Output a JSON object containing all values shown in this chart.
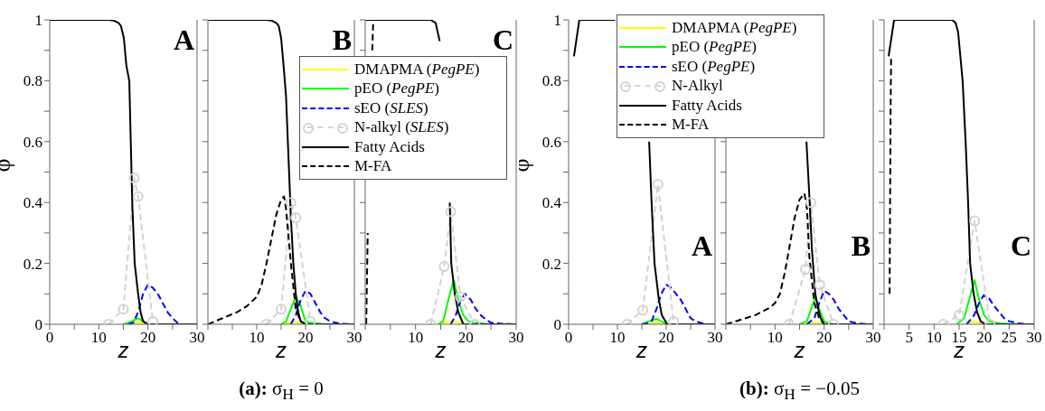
{
  "chart_data": [
    {
      "type": "line",
      "xlim": [
        0,
        30
      ],
      "ylim": [
        0,
        1
      ],
      "xlabel": "z",
      "ylabel": "φ",
      "xticks": [
        0,
        {
          "value": 5,
          "label": null
        },
        10,
        {
          "value": 15,
          "label": null
        },
        20,
        {
          "value": 25,
          "label": null
        },
        30
      ],
      "yticks": [
        0,
        {
          "value": 0.1,
          "label": null
        },
        0.2,
        {
          "value": 0.3,
          "label": null
        },
        0.4,
        {
          "value": 0.5,
          "label": null
        },
        0.6,
        {
          "value": 0.7,
          "label": null
        },
        0.8,
        {
          "value": 0.9,
          "label": null
        },
        1
      ],
      "annotations": [
        "A"
      ],
      "series": [
        {
          "color": "#ffff00",
          "x": [
            16,
            17,
            18,
            19,
            20
          ],
          "values": [
            0,
            0.004,
            0.008,
            0.004,
            0
          ]
        },
        {
          "color": "#00ff00",
          "x": [
            15,
            16,
            17,
            18,
            19,
            20
          ],
          "values": [
            0,
            0.005,
            0.012,
            0.02,
            0.01,
            0
          ]
        },
        {
          "color": "#0000ff",
          "line_style": "dashed",
          "x": [
            16,
            17,
            18,
            19,
            20,
            21,
            22,
            23,
            24,
            25,
            26,
            27,
            30
          ],
          "values": [
            0,
            0.005,
            0.04,
            0.1,
            0.13,
            0.12,
            0.1,
            0.07,
            0.04,
            0.02,
            0.005,
            0,
            0
          ]
        },
        {
          "color": "#d3d3d3",
          "line_style": "dashed",
          "marker": "circle",
          "x": [
            12,
            15,
            17.2,
            18,
            21
          ],
          "values": [
            0,
            0.05,
            0.48,
            0.42,
            0.01
          ]
        },
        {
          "color": "#000000",
          "x": [
            0,
            5,
            10,
            12,
            13,
            14,
            14.5,
            15.1,
            15.6,
            16.2,
            16.5,
            16.8,
            17.3,
            18,
            18.5,
            19,
            20,
            30
          ],
          "values": [
            1,
            1,
            1,
            1,
            0.998,
            0.99,
            0.98,
            0.94,
            0.85,
            0.8,
            0.6,
            0.4,
            0.2,
            0.1,
            0.04,
            0.01,
            0,
            0
          ]
        }
      ]
    },
    {
      "type": "line",
      "xlim": [
        0,
        30
      ],
      "ylim": [
        0,
        1
      ],
      "xlabel": "z",
      "tick_labels": "x",
      "legend": "top right",
      "xticks": [
        {
          "value": 0,
          "label": null
        },
        {
          "value": 5,
          "label": null
        },
        10,
        {
          "value": 15,
          "label": null
        },
        20,
        {
          "value": 25,
          "label": null
        },
        30
      ],
      "yticks": [
        0,
        {
          "value": 0.1,
          "label": null
        },
        0.2,
        {
          "value": 0.3,
          "label": null
        },
        0.4,
        {
          "value": 0.5,
          "label": null
        },
        0.6,
        {
          "value": 0.7,
          "label": null
        },
        0.8,
        {
          "value": 0.9,
          "label": null
        },
        1
      ],
      "annotations": [
        "B",
        "(a): σ$_{H}$ = 0"
      ],
      "series": [
        {
          "name": "DMAPMA (PegPE)",
          "color": "#ffff00",
          "x": [
            15,
            17,
            18,
            19,
            20
          ],
          "values": [
            0,
            0.005,
            0.008,
            0.003,
            0
          ]
        },
        {
          "name": "pEO (PegPE)",
          "color": "#00ff00",
          "x": [
            15,
            16,
            17,
            18,
            19,
            20,
            21,
            24
          ],
          "values": [
            0,
            0.01,
            0.05,
            0.09,
            0.06,
            0.01,
            0.005,
            0
          ]
        },
        {
          "name": "sEO (SLES)",
          "color": "#0000ff",
          "line_style": "dashed",
          "x": [
            17,
            18,
            19,
            20,
            21,
            22,
            23,
            24,
            25,
            27,
            30
          ],
          "values": [
            0,
            0.03,
            0.08,
            0.11,
            0.1,
            0.07,
            0.04,
            0.02,
            0.01,
            0.002,
            0
          ]
        },
        {
          "name": "N-alkyl (SLES)",
          "color": "#d3d3d3",
          "line_style": "dashed",
          "marker": "circle",
          "x": [
            12,
            15,
            17,
            18,
            21
          ],
          "values": [
            0,
            0.05,
            0.4,
            0.35,
            0.01
          ]
        },
        {
          "name": "Fatty Acids",
          "color": "#000000",
          "x": [
            0,
            5,
            10,
            12,
            13,
            14,
            14.5,
            15,
            15.5,
            16,
            16.5,
            17,
            17.5,
            18,
            18.5,
            19,
            20,
            30
          ],
          "values": [
            1,
            1,
            1,
            1,
            0.998,
            0.99,
            0.98,
            0.94,
            0.85,
            0.75,
            0.55,
            0.35,
            0.2,
            0.1,
            0.04,
            0.01,
            0,
            0
          ]
        },
        {
          "name": "M-FA",
          "color": "#000000",
          "line_style": "dashed",
          "x": [
            0,
            3,
            6,
            8,
            10,
            11,
            12,
            13,
            14,
            15,
            15.6,
            16,
            17,
            18,
            19,
            20
          ],
          "values": [
            0,
            0.02,
            0.04,
            0.06,
            0.09,
            0.13,
            0.2,
            0.28,
            0.36,
            0.41,
            0.42,
            0.38,
            0.2,
            0.05,
            0.01,
            0
          ]
        }
      ]
    },
    {
      "type": "line",
      "xlim": [
        0,
        30
      ],
      "ylim": [
        0,
        1
      ],
      "xlabel": "z",
      "tick_labels": "x",
      "xticks": [
        {
          "value": 0,
          "label": null
        },
        {
          "value": 5,
          "label": null
        },
        10,
        {
          "value": 15,
          "label": null
        },
        20,
        {
          "value": 25,
          "label": null
        },
        30
      ],
      "yticks": [
        0,
        {
          "value": 0.1,
          "label": null
        },
        0.2,
        {
          "value": 0.3,
          "label": null
        },
        0.4,
        {
          "value": 0.5,
          "label": null
        },
        0.6,
        {
          "value": 0.7,
          "label": null
        },
        0.8,
        {
          "value": 0.9,
          "label": null
        },
        1
      ],
      "annotations": [
        "C"
      ],
      "series": [
        {
          "color": "#ffff00",
          "x": [
            14.5,
            16,
            17.5,
            19,
            20
          ],
          "values": [
            0,
            0.008,
            0.01,
            0.004,
            0
          ]
        },
        {
          "color": "#00ff00",
          "x": [
            14.5,
            15.5,
            16.5,
            17.6,
            18.5,
            19.5,
            20.5,
            22,
            24.5
          ],
          "values": [
            0,
            0.01,
            0.08,
            0.145,
            0.08,
            0.03,
            0.01,
            0.005,
            0
          ]
        },
        {
          "color": "#0000ff",
          "line_style": "dashed",
          "x": [
            17,
            18,
            19,
            19.8,
            21,
            22,
            23,
            24,
            25,
            27,
            30
          ],
          "values": [
            0,
            0.03,
            0.08,
            0.1,
            0.08,
            0.05,
            0.03,
            0.015,
            0.005,
            0.002,
            0
          ]
        },
        {
          "color": "#d3d3d3",
          "line_style": "dashed",
          "marker": "circle",
          "x": [
            13,
            15.7,
            17,
            18.9,
            21.8
          ],
          "values": [
            0,
            0.19,
            0.37,
            0.09,
            0
          ]
        },
        {
          "color": "#000000",
          "x": [
            0,
            5,
            10,
            13,
            14,
            14.8,
            15.5,
            16.5,
            16.8,
            17.1,
            17.8,
            18.5,
            19.5,
            30
          ],
          "values": [
            1,
            1,
            1,
            1,
            0.99,
            0.93,
            null,
            null,
            0.4,
            0.2,
            0.1,
            0.04,
            0,
            0
          ]
        },
        {
          "color": "#000000",
          "line_style": "dashed",
          "x": [
            0.2,
            0.5,
            0.9,
            1.2,
            1.4,
            1.6
          ],
          "values": [
            0,
            0.3,
            null,
            null,
            0.9,
            1
          ]
        }
      ]
    },
    {
      "type": "line",
      "xlim": [
        0,
        30
      ],
      "ylim": [
        0,
        1
      ],
      "xlabel": "z",
      "ylabel": "φ",
      "xticks": [
        0,
        {
          "value": 5,
          "label": null
        },
        10,
        {
          "value": 15,
          "label": null
        },
        20,
        {
          "value": 25,
          "label": null
        },
        30
      ],
      "yticks": [
        0,
        {
          "value": 0.1,
          "label": null
        },
        0.2,
        {
          "value": 0.3,
          "label": null
        },
        0.4,
        {
          "value": 0.5,
          "label": null
        },
        0.6,
        {
          "value": 0.7,
          "label": null
        },
        0.8,
        {
          "value": 0.9,
          "label": null
        },
        1
      ],
      "annotations": [
        "A"
      ],
      "series": [
        {
          "color": "#ffff00",
          "x": [
            16,
            17,
            18,
            19,
            20
          ],
          "values": [
            0,
            0.003,
            0.005,
            0.002,
            0
          ]
        },
        {
          "color": "#00ff00",
          "x": [
            15,
            16.5,
            18,
            19,
            20,
            22,
            25
          ],
          "values": [
            0,
            0.01,
            0.018,
            0.01,
            0,
            0,
            0
          ]
        },
        {
          "color": "#0000ff",
          "line_style": "dashed",
          "x": [
            15,
            16,
            17,
            18,
            19,
            20,
            21,
            22,
            23,
            24,
            25,
            26,
            28
          ],
          "values": [
            0,
            0.003,
            0.01,
            0.05,
            0.1,
            0.13,
            0.12,
            0.1,
            0.08,
            0.05,
            0.02,
            0.01,
            0
          ]
        },
        {
          "color": "#d3d3d3",
          "line_style": "dashed",
          "marker": "circle",
          "x": [
            12,
            15.2,
            18.3,
            21.5
          ],
          "values": [
            0,
            0.047,
            0.46,
            0.01
          ]
        },
        {
          "color": "#000000",
          "x": [
            1.1,
            2.2,
            5,
            9.5,
            13,
            16.5,
            17,
            17.6,
            18.5,
            19.1,
            20.2,
            30
          ],
          "values": [
            0.88,
            1,
            1,
            1,
            null,
            0.6,
            0.4,
            0.2,
            0.08,
            0.03,
            0,
            0
          ]
        }
      ]
    },
    {
      "type": "line",
      "xlim": [
        0,
        30
      ],
      "ylim": [
        0,
        1
      ],
      "xlabel": "z",
      "tick_labels": "x",
      "legend": "top left",
      "xticks": [
        {
          "value": 0,
          "label": null
        },
        {
          "value": 5,
          "label": null
        },
        10,
        {
          "value": 15,
          "label": null
        },
        20,
        {
          "value": 25,
          "label": null
        },
        30
      ],
      "yticks": [
        0,
        {
          "value": 0.1,
          "label": null
        },
        0.2,
        {
          "value": 0.3,
          "label": null
        },
        0.4,
        {
          "value": 0.5,
          "label": null
        },
        0.6,
        {
          "value": 0.7,
          "label": null
        },
        0.8,
        {
          "value": 0.9,
          "label": null
        },
        1
      ],
      "annotations": [
        "B",
        "(b): σ$_{H}$ = −0.05"
      ],
      "series": [
        {
          "name": "DMAPMA (PegPE)",
          "color": "#ffff00",
          "x": [
            16,
            18,
            20
          ],
          "values": [
            0,
            0.006,
            0
          ]
        },
        {
          "name": "pEO (PegPE)",
          "color": "#00ff00",
          "x": [
            15,
            16.5,
            18.2,
            19,
            20,
            21,
            22,
            25,
            27
          ],
          "values": [
            0,
            0.01,
            0.09,
            0.05,
            0.01,
            0.003,
            0,
            0,
            0
          ]
        },
        {
          "name": "sEO (PegPE)",
          "color": "#0000ff",
          "line_style": "dashed",
          "x": [
            16.5,
            18,
            19,
            20,
            21,
            22,
            23,
            24,
            25,
            27,
            30
          ],
          "values": [
            0,
            0.02,
            0.07,
            0.11,
            0.1,
            0.08,
            0.05,
            0.03,
            0.01,
            0.002,
            0
          ]
        },
        {
          "name": "N-Alkyl",
          "color": "#d3d3d3",
          "line_style": "dashed",
          "marker": "circle",
          "x": [
            12.9,
            16.2,
            17.3,
            19.1,
            21.9
          ],
          "values": [
            0,
            0.18,
            0.4,
            0.13,
            0
          ]
        },
        {
          "name": "Fatty Acids",
          "color": "#000000",
          "x": [
            16.4,
            17,
            17.5,
            18.2,
            18.8,
            19.3,
            20,
            30
          ],
          "values": [
            0.6,
            0.42,
            0.25,
            0.1,
            0.05,
            0.02,
            0,
            0
          ]
        },
        {
          "name": "M-FA",
          "color": "#000000",
          "line_style": "dashed",
          "x": [
            0,
            3,
            6,
            9,
            10,
            11,
            12,
            13,
            14,
            15,
            16,
            16.5,
            17,
            18,
            19,
            20
          ],
          "values": [
            0,
            0.015,
            0.03,
            0.055,
            0.07,
            0.1,
            0.17,
            0.26,
            0.35,
            0.41,
            0.43,
            0.38,
            0.22,
            0.07,
            0.02,
            0
          ]
        }
      ]
    },
    {
      "type": "line",
      "xlim": [
        0,
        30
      ],
      "ylim": [
        0,
        1
      ],
      "xlabel": "z",
      "tick_labels": "x",
      "xticks": [
        {
          "value": 0,
          "label": null
        },
        5,
        10,
        15,
        20,
        25,
        30
      ],
      "yticks": [
        0,
        {
          "value": 0.1,
          "label": null
        },
        0.2,
        {
          "value": 0.3,
          "label": null
        },
        0.4,
        {
          "value": 0.5,
          "label": null
        },
        0.6,
        {
          "value": 0.7,
          "label": null
        },
        0.8,
        {
          "value": 0.9,
          "label": null
        },
        1
      ],
      "annotations": [
        "C"
      ],
      "series": [
        {
          "color": "#ffff00",
          "x": [
            16,
            18,
            20
          ],
          "values": [
            0,
            0.008,
            0
          ]
        },
        {
          "color": "#00ff00",
          "x": [
            14.5,
            16,
            17,
            18.1,
            19,
            20,
            21,
            23,
            27
          ],
          "values": [
            0,
            0.02,
            0.08,
            0.145,
            0.08,
            0.03,
            0.01,
            0.003,
            0
          ]
        },
        {
          "color": "#0000ff",
          "line_style": "dashed",
          "x": [
            16.5,
            18,
            19,
            19.9,
            21,
            22,
            23,
            24,
            25,
            27,
            29
          ],
          "values": [
            0,
            0.03,
            0.07,
            0.095,
            0.085,
            0.06,
            0.04,
            0.02,
            0.01,
            0.003,
            0
          ]
        },
        {
          "color": "#d3d3d3",
          "line_style": "dashed",
          "marker": "circle",
          "x": [
            11.8,
            15,
            18.1,
            21.2
          ],
          "values": [
            0,
            0.03,
            0.34,
            0
          ]
        },
        {
          "color": "#000000",
          "x": [
            0.9,
            2,
            5,
            10,
            13.6,
            14.3,
            14.8,
            15.7,
            16.3,
            16.8,
            17.2,
            17.9,
            18.6,
            19.3,
            20.2,
            30
          ],
          "values": [
            0.88,
            1,
            1,
            1,
            1,
            0.99,
            0.96,
            0.8,
            0.6,
            0.4,
            0.2,
            0.1,
            0.04,
            0.01,
            0,
            0
          ]
        },
        {
          "color": "#000000",
          "line_style": "dashed",
          "x": [
            1.1,
            1.2,
            1.3,
            1.4
          ],
          "values": [
            0.1,
            0.4,
            0.7,
            0.88
          ]
        }
      ]
    }
  ]
}
